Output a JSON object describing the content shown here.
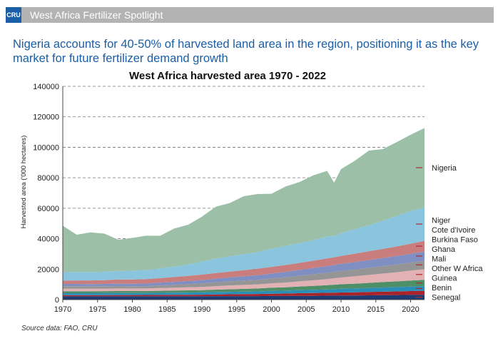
{
  "banner": {
    "logo_text": "CRU",
    "title": "West Africa Fertilizer Spotlight"
  },
  "headline": "Nigeria accounts for 40-50% of harvested land area in the region, positioning it as the key market for future fertilizer demand growth",
  "source": "Source data: FAO, CRU",
  "chart_data": {
    "type": "area",
    "stacked": true,
    "title": "West Africa harvested area 1970 - 2022",
    "ylabel": "Harvested area ('000 hectares)",
    "xlabel": "",
    "ylim": [
      0,
      140000
    ],
    "xlim": [
      1970,
      2022
    ],
    "y_ticks": [
      0,
      20000,
      40000,
      60000,
      80000,
      100000,
      120000,
      140000
    ],
    "x_ticks": [
      1970,
      1975,
      1980,
      1985,
      1990,
      1995,
      2000,
      2005,
      2010,
      2015,
      2020
    ],
    "grid": "horizontal dashed",
    "legend": "right",
    "years": [
      1970,
      1972,
      1974,
      1976,
      1978,
      1980,
      1982,
      1984,
      1986,
      1988,
      1990,
      1992,
      1994,
      1996,
      1998,
      2000,
      2002,
      2004,
      2006,
      2008,
      2009,
      2010,
      2012,
      2014,
      2016,
      2018,
      2020,
      2022
    ],
    "series": [
      {
        "name": "Senegal",
        "color": "#1f3b73",
        "values": [
          2200,
          2200,
          2200,
          2200,
          2200,
          2200,
          2200,
          2200,
          2200,
          2200,
          2200,
          2300,
          2300,
          2300,
          2300,
          2400,
          2400,
          2500,
          2500,
          2600,
          2600,
          2700,
          2700,
          2800,
          2900,
          3000,
          3100,
          3200
        ]
      },
      {
        "name": "Benin",
        "color": "#a8232a",
        "values": [
          700,
          700,
          700,
          750,
          800,
          800,
          850,
          900,
          950,
          1000,
          1050,
          1100,
          1200,
          1300,
          1400,
          1500,
          1600,
          1700,
          1800,
          1900,
          2000,
          2000,
          2100,
          2200,
          2300,
          2400,
          2500,
          2600
        ]
      },
      {
        "name": "Guinea",
        "color": "#2a8fb8",
        "values": [
          1300,
          1300,
          1300,
          1300,
          1300,
          1300,
          1300,
          1350,
          1400,
          1450,
          1500,
          1550,
          1600,
          1650,
          1700,
          1800,
          1900,
          2000,
          2100,
          2200,
          2300,
          2400,
          2500,
          2600,
          2700,
          2800,
          2900,
          3000
        ]
      },
      {
        "name": "Other W Africa",
        "color": "#4e8f68",
        "values": [
          1300,
          1300,
          1300,
          1300,
          1300,
          1300,
          1300,
          1350,
          1400,
          1450,
          1500,
          1600,
          1700,
          1800,
          1900,
          2100,
          2200,
          2400,
          2600,
          2800,
          2900,
          3000,
          3200,
          3400,
          3600,
          3800,
          4000,
          4200
        ]
      },
      {
        "name": "Mali",
        "color": "#e2b1b3",
        "values": [
          1600,
          1600,
          1600,
          1650,
          1700,
          1700,
          1700,
          1800,
          1900,
          2000,
          2100,
          2300,
          2500,
          2600,
          2700,
          2900,
          3100,
          3400,
          3700,
          4000,
          4200,
          4400,
          4800,
          5200,
          5600,
          6000,
          6500,
          7000
        ]
      },
      {
        "name": "Ghana",
        "color": "#959595",
        "values": [
          1700,
          1700,
          1600,
          1600,
          1600,
          1500,
          1500,
          1700,
          1900,
          2100,
          2300,
          2500,
          2700,
          2900,
          3000,
          3200,
          3500,
          3700,
          3900,
          4100,
          4200,
          4300,
          4500,
          4700,
          4900,
          5100,
          5300,
          5600
        ]
      },
      {
        "name": "Burkina Faso",
        "color": "#7f8fc2",
        "values": [
          1500,
          1500,
          1500,
          1500,
          1600,
          1600,
          1700,
          1800,
          1900,
          2000,
          2200,
          2400,
          2600,
          2800,
          3000,
          3200,
          3500,
          3800,
          4100,
          4400,
          4500,
          4700,
          4900,
          5100,
          5300,
          5500,
          5700,
          6000
        ]
      },
      {
        "name": "Cote d'Ivoire",
        "color": "#c97d7d",
        "values": [
          2200,
          2300,
          2400,
          2500,
          2700,
          2800,
          2900,
          3000,
          3200,
          3400,
          3600,
          3700,
          3800,
          4000,
          4300,
          4400,
          4500,
          4600,
          4800,
          5000,
          5100,
          5200,
          5500,
          5800,
          6000,
          6300,
          6700,
          7000
        ]
      },
      {
        "name": "Niger",
        "color": "#8bc4dd",
        "values": [
          5500,
          5500,
          5500,
          5500,
          5600,
          5800,
          6000,
          6300,
          6800,
          7500,
          8500,
          9500,
          10000,
          10500,
          11000,
          12000,
          12500,
          13000,
          13500,
          14500,
          14000,
          15000,
          16000,
          17000,
          18500,
          20000,
          21500,
          22000
        ]
      },
      {
        "name": "Nigeria",
        "color": "#9cbfa8",
        "values": [
          30500,
          24500,
          26000,
          25000,
          20500,
          21500,
          22500,
          21500,
          25000,
          26000,
          29500,
          34000,
          35000,
          38000,
          38000,
          36000,
          39000,
          40000,
          42500,
          43000,
          35000,
          42000,
          45000,
          49000,
          47000,
          48500,
          50000,
          52000
        ]
      }
    ]
  }
}
